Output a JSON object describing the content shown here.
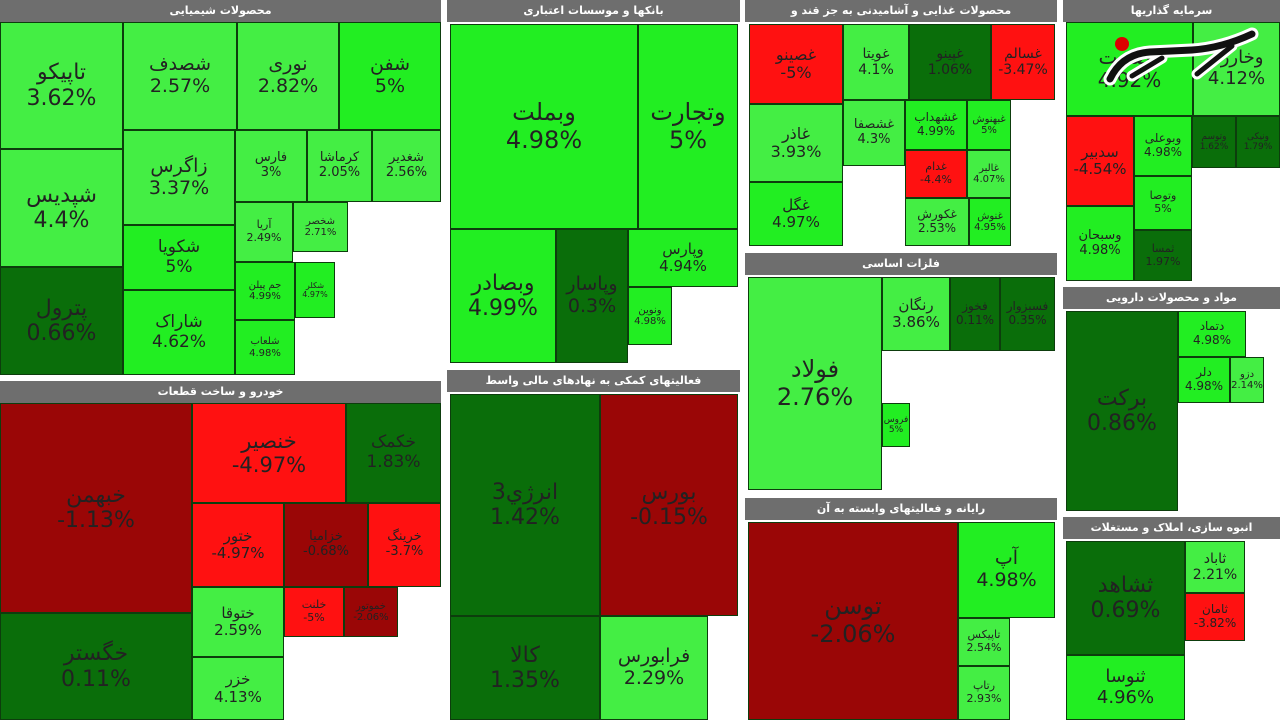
{
  "chart_data": {
    "type": "heatmap",
    "colors": {
      "strong_green": "#22ee22",
      "light_green": "#44ee44",
      "dark_green": "#0a6e0a",
      "strong_red": "#ff1111",
      "dark_red": "#9a0606"
    },
    "sectors": [
      {
        "title": "محصولات شیمیایی",
        "tiles": [
          {
            "name": "تاپیکو",
            "value": "3.62%"
          },
          {
            "name": "شپدیس",
            "value": "4.4%"
          },
          {
            "name": "پترول",
            "value": "0.66%"
          },
          {
            "name": "شصدف",
            "value": "2.57%"
          },
          {
            "name": "زاگرس",
            "value": "3.37%"
          },
          {
            "name": "شکویا",
            "value": "5%"
          },
          {
            "name": "شاراک",
            "value": "4.62%"
          },
          {
            "name": "نوری",
            "value": "2.82%"
          },
          {
            "name": "شفن",
            "value": "5%"
          },
          {
            "name": "فارس",
            "value": "3%"
          },
          {
            "name": "کرماشا",
            "value": "2.05%"
          },
          {
            "name": "شغدیر",
            "value": "2.56%"
          },
          {
            "name": "آریا",
            "value": "2.49%"
          },
          {
            "name": "شخصر",
            "value": "2.71%"
          },
          {
            "name": "جم پیلن",
            "value": "4.99%"
          },
          {
            "name": "شلعاب",
            "value": "4.98%"
          },
          {
            "name": "شکلر",
            "value": "4.97%"
          }
        ]
      },
      {
        "title": "بانکها و موسسات اعتباری",
        "tiles": [
          {
            "name": "وبملت",
            "value": "4.98%"
          },
          {
            "name": "وتجارت",
            "value": "5%"
          },
          {
            "name": "وبصادر",
            "value": "4.99%"
          },
          {
            "name": "وپاسار",
            "value": "0.3%"
          },
          {
            "name": "وپارس",
            "value": "4.94%"
          },
          {
            "name": "ونوین",
            "value": "4.98%"
          }
        ]
      },
      {
        "title": "محصولات غذایی و آشامیدنی به جز قند و",
        "tiles": [
          {
            "name": "غصینو",
            "value": "-5%"
          },
          {
            "name": "غویتا",
            "value": "4.1%"
          },
          {
            "name": "غپینو",
            "value": "1.06%"
          },
          {
            "name": "غسالم",
            "value": "-3.47%"
          },
          {
            "name": "غاذر",
            "value": "3.93%"
          },
          {
            "name": "غشصفا",
            "value": "4.3%"
          },
          {
            "name": "غشهداب",
            "value": "4.99%"
          },
          {
            "name": "غبهنوش",
            "value": "5%"
          },
          {
            "name": "غگل",
            "value": "4.97%"
          },
          {
            "name": "غدام",
            "value": "-4.4%"
          },
          {
            "name": "غالبر",
            "value": "4.07%"
          },
          {
            "name": "غکورش",
            "value": "2.53%"
          },
          {
            "name": "غنوش",
            "value": "4.95%"
          }
        ]
      },
      {
        "title": "سرمایه گذاریها",
        "tiles": [
          {
            "name": "وصنعت",
            "value": "4.92%"
          },
          {
            "name": "وخارزم",
            "value": "4.12%"
          },
          {
            "name": "سدبیر",
            "value": "-4.54%"
          },
          {
            "name": "وبوعلی",
            "value": "4.98%"
          },
          {
            "name": "وتوسم",
            "value": "1.62%"
          },
          {
            "name": "ونیکی",
            "value": "1.79%"
          },
          {
            "name": "وتوصا",
            "value": "5%"
          },
          {
            "name": "وسبحان",
            "value": "4.98%"
          },
          {
            "name": "ثمسا",
            "value": "1.97%"
          }
        ]
      },
      {
        "title": "فلزات اساسی",
        "tiles": [
          {
            "name": "فولاد",
            "value": "2.76%"
          },
          {
            "name": "رنگان",
            "value": "3.86%"
          },
          {
            "name": "فخوز",
            "value": "0.11%"
          },
          {
            "name": "فسبزوار",
            "value": "0.35%"
          },
          {
            "name": "فروس",
            "value": "5%"
          }
        ]
      },
      {
        "title": "مواد و محصولات دارویی",
        "tiles": [
          {
            "name": "برکت",
            "value": "0.86%"
          },
          {
            "name": "دتماد",
            "value": "4.98%"
          },
          {
            "name": "دلر",
            "value": "4.98%"
          },
          {
            "name": "دزو",
            "value": "2.14%"
          }
        ]
      },
      {
        "title": "خودرو و ساخت قطعات",
        "tiles": [
          {
            "name": "خبهمن",
            "value": "-1.13%"
          },
          {
            "name": "خنصیر",
            "value": "-4.97%"
          },
          {
            "name": "خکمک",
            "value": "1.83%"
          },
          {
            "name": "خگستر",
            "value": "0.11%"
          },
          {
            "name": "ختور",
            "value": "-4.97%"
          },
          {
            "name": "خزامیا",
            "value": "-0.68%"
          },
          {
            "name": "خرینگ",
            "value": "-3.7%"
          },
          {
            "name": "ختوقا",
            "value": "2.59%"
          },
          {
            "name": "خلنت",
            "value": "-5%"
          },
          {
            "name": "خموتور",
            "value": "-2.06%"
          },
          {
            "name": "خزر",
            "value": "4.13%"
          }
        ]
      },
      {
        "title": "فعالیتهای کمکی به نهادهای مالی واسط",
        "tiles": [
          {
            "name": "انرژي3",
            "value": "1.42%"
          },
          {
            "name": "بورس",
            "value": "-0.15%"
          },
          {
            "name": "کالا",
            "value": "1.35%"
          },
          {
            "name": "فرابورس",
            "value": "2.29%"
          }
        ]
      },
      {
        "title": "رایانه و فعالیتهای وابسته به آن",
        "tiles": [
          {
            "name": "توسن",
            "value": "-2.06%"
          },
          {
            "name": "آپ",
            "value": "4.98%"
          },
          {
            "name": "تاپیکس",
            "value": "2.54%"
          },
          {
            "name": "رتاپ",
            "value": "2.93%"
          }
        ]
      },
      {
        "title": "انبوه سازی، املاک و مستغلات",
        "tiles": [
          {
            "name": "ثشاهد",
            "value": "0.69%"
          },
          {
            "name": "ثاباد",
            "value": "2.21%"
          },
          {
            "name": "ثنوسا",
            "value": "4.96%"
          },
          {
            "name": "ثامان",
            "value": "-3.82%"
          }
        ]
      }
    ]
  }
}
